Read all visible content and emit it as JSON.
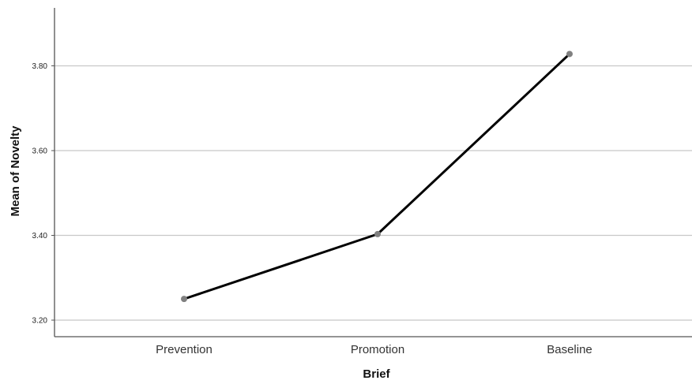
{
  "chart_data": {
    "type": "line",
    "title": "",
    "xlabel": "Brief",
    "ylabel": "Mean of Novelty",
    "categories": [
      "Prevention",
      "Promotion",
      "Baseline"
    ],
    "values": [
      3.25,
      3.403,
      3.828
    ],
    "yticks": [
      "3.20",
      "3.40",
      "3.60",
      "3.80"
    ],
    "ylim": [
      3.16,
      3.94
    ],
    "grid": true,
    "legend": "none",
    "line_color": "#000000",
    "marker_color": "#808080",
    "grid_color": "#c8c8c8",
    "axis_color": "#555555"
  }
}
